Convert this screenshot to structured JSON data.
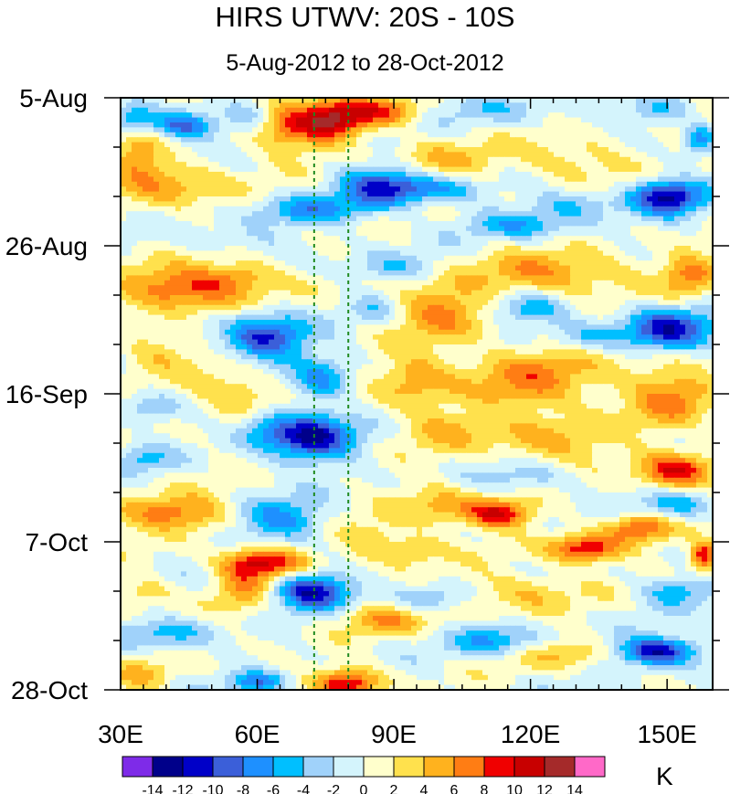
{
  "chart_data": {
    "type": "heatmap",
    "title": "HIRS UTWV: 20S - 10S",
    "subtitle": "5-Aug-2012 to 28-Oct-2012",
    "xlabel": "",
    "ylabel": "",
    "units": "K",
    "x_range": [
      30,
      160
    ],
    "y_range_days": [
      0,
      84
    ],
    "x_ticks": [
      {
        "value": 30,
        "label": "30E"
      },
      {
        "value": 60,
        "label": "60E"
      },
      {
        "value": 90,
        "label": "90E"
      },
      {
        "value": 120,
        "label": "120E"
      },
      {
        "value": 150,
        "label": "150E"
      }
    ],
    "y_ticks": [
      {
        "day": 0,
        "label": "5-Aug"
      },
      {
        "day": 21,
        "label": "26-Aug"
      },
      {
        "day": 42,
        "label": "16-Sep"
      },
      {
        "day": 63,
        "label": "7-Oct"
      },
      {
        "day": 84,
        "label": "28-Oct"
      }
    ],
    "reference_lines_lon": [
      72.5,
      80
    ],
    "colorbar": {
      "colors": [
        "#7e2be8",
        "#00008a",
        "#0000c8",
        "#3b5fd9",
        "#1e90ff",
        "#00bfff",
        "#a0d2fa",
        "#d4f4fc",
        "#ffffcc",
        "#ffe14d",
        "#ffb21e",
        "#ff7d14",
        "#f00000",
        "#c80000",
        "#a52a2a",
        "#ff69c8"
      ],
      "labels": [
        "-14",
        "-12",
        "-10",
        "-8",
        "-6",
        "-4",
        "-2",
        "0",
        "2",
        "4",
        "6",
        "8",
        "10",
        "12",
        "14"
      ]
    },
    "features": [
      {
        "type": "blob",
        "lon": 77,
        "day": 3,
        "value": 10,
        "a_lon": 7,
        "a_day": 3
      },
      {
        "type": "blob",
        "lon": 88,
        "day": 2,
        "value": 7,
        "a_lon": 8,
        "a_day": 2
      },
      {
        "type": "blob",
        "lon": 67,
        "day": 4,
        "value": 7,
        "a_lon": 8,
        "a_day": 4
      },
      {
        "type": "blob",
        "lon": 44,
        "day": 4,
        "value": -9,
        "a_lon": 7,
        "a_day": 2
      },
      {
        "type": "blob",
        "lon": 33,
        "day": 3,
        "value": -5,
        "a_lon": 5,
        "a_day": 2
      },
      {
        "type": "blob",
        "lon": 58,
        "day": 3,
        "value": -4,
        "a_lon": 5,
        "a_day": 2
      },
      {
        "type": "blob",
        "lon": 112,
        "day": 1.5,
        "value": -3,
        "a_lon": 14,
        "a_day": 2
      },
      {
        "type": "blob",
        "lon": 148,
        "day": 2,
        "value": -4,
        "a_lon": 7,
        "a_day": 2
      },
      {
        "type": "blob",
        "lon": 157,
        "day": 6,
        "value": -7,
        "a_lon": 3,
        "a_day": 2
      },
      {
        "type": "blob",
        "lon": 100,
        "day": 9,
        "value": 4,
        "a_lon": 12,
        "a_day": 3
      },
      {
        "type": "blob",
        "lon": 130,
        "day": 9,
        "value": 4,
        "a_lon": 12,
        "a_day": 3
      },
      {
        "type": "blob",
        "lon": 40,
        "day": 12,
        "value": 6,
        "a_lon": 12,
        "a_day": 3
      },
      {
        "type": "blob",
        "lon": 34,
        "day": 8,
        "value": 4,
        "a_lon": 5,
        "a_day": 4
      },
      {
        "type": "blob",
        "lon": 87,
        "day": 12.5,
        "value": -9,
        "a_lon": 9,
        "a_day": 3
      },
      {
        "type": "blob",
        "lon": 72,
        "day": 16,
        "value": -6,
        "a_lon": 12,
        "a_day": 2
      },
      {
        "type": "blob",
        "lon": 99,
        "day": 13,
        "value": -6,
        "a_lon": 10,
        "a_day": 2
      },
      {
        "type": "blob",
        "lon": 150,
        "day": 14,
        "value": -12,
        "a_lon": 8,
        "a_day": 2.5
      },
      {
        "type": "blob",
        "lon": 118,
        "day": 18,
        "value": -5,
        "a_lon": 12,
        "a_day": 2
      },
      {
        "type": "blob",
        "lon": 130,
        "day": 15,
        "value": -4,
        "a_lon": 10,
        "a_day": 2
      },
      {
        "type": "blob",
        "lon": 54,
        "day": 20,
        "value": -2,
        "a_lon": 14,
        "a_day": 2
      },
      {
        "type": "blob",
        "lon": 90,
        "day": 24,
        "value": -4,
        "a_lon": 10,
        "a_day": 2
      },
      {
        "type": "blob",
        "lon": 45,
        "day": 27,
        "value": 9,
        "a_lon": 14,
        "a_day": 3
      },
      {
        "type": "blob",
        "lon": 57,
        "day": 25,
        "value": 4,
        "a_lon": 8,
        "a_day": 2
      },
      {
        "type": "blob",
        "lon": 125,
        "day": 25,
        "value": 6,
        "a_lon": 18,
        "a_day": 3
      },
      {
        "type": "blob",
        "lon": 155,
        "day": 25,
        "value": 6,
        "a_lon": 6,
        "a_day": 3
      },
      {
        "type": "blob",
        "lon": 100,
        "day": 30,
        "value": 6,
        "a_lon": 10,
        "a_day": 4
      },
      {
        "type": "blob",
        "lon": 120,
        "day": 30,
        "value": -6,
        "a_lon": 8,
        "a_day": 2
      },
      {
        "type": "blob",
        "lon": 86,
        "day": 30,
        "value": -3,
        "a_lon": 5,
        "a_day": 2
      },
      {
        "type": "blob",
        "lon": 62,
        "day": 34,
        "value": -10,
        "a_lon": 9,
        "a_day": 3.5
      },
      {
        "type": "blob",
        "lon": 150,
        "day": 33,
        "value": -11,
        "a_lon": 10,
        "a_day": 3
      },
      {
        "type": "blob",
        "lon": 132,
        "day": 34,
        "value": -4,
        "a_lon": 8,
        "a_day": 2
      },
      {
        "type": "blob",
        "lon": 38,
        "day": 36,
        "value": 4,
        "a_lon": 8,
        "a_day": 3
      },
      {
        "type": "blob",
        "lon": 120,
        "day": 40,
        "value": 6,
        "a_lon": 16,
        "a_day": 5
      },
      {
        "type": "blob",
        "lon": 95,
        "day": 40,
        "value": 5,
        "a_lon": 8,
        "a_day": 4
      },
      {
        "type": "blob",
        "lon": 150,
        "day": 42,
        "value": 6,
        "a_lon": 10,
        "a_day": 5
      },
      {
        "type": "blob",
        "lon": 74,
        "day": 40,
        "value": -6,
        "a_lon": 6,
        "a_day": 3
      },
      {
        "type": "blob",
        "lon": 56,
        "day": 42,
        "value": 5,
        "a_lon": 10,
        "a_day": 3
      },
      {
        "type": "blob",
        "lon": 37,
        "day": 44,
        "value": -4,
        "a_lon": 6,
        "a_day": 2
      },
      {
        "type": "blob",
        "lon": 72,
        "day": 48,
        "value": -12,
        "a_lon": 9,
        "a_day": 3.5
      },
      {
        "type": "blob",
        "lon": 62,
        "day": 47,
        "value": -5,
        "a_lon": 6,
        "a_day": 2.5
      },
      {
        "type": "blob",
        "lon": 100,
        "day": 47,
        "value": 4,
        "a_lon": 10,
        "a_day": 3
      },
      {
        "type": "blob",
        "lon": 125,
        "day": 49,
        "value": 5,
        "a_lon": 12,
        "a_day": 3
      },
      {
        "type": "blob",
        "lon": 152,
        "day": 53,
        "value": 10,
        "a_lon": 8,
        "a_day": 2.5
      },
      {
        "type": "blob",
        "lon": 35,
        "day": 51,
        "value": -4,
        "a_lon": 6,
        "a_day": 2
      },
      {
        "type": "blob",
        "lon": 120,
        "day": 54,
        "value": -3,
        "a_lon": 12,
        "a_day": 2
      },
      {
        "type": "blob",
        "lon": 42,
        "day": 59,
        "value": 7,
        "a_lon": 14,
        "a_day": 2.5
      },
      {
        "type": "blob",
        "lon": 65,
        "day": 60,
        "value": -7,
        "a_lon": 10,
        "a_day": 3
      },
      {
        "type": "blob",
        "lon": 100,
        "day": 58,
        "value": 5,
        "a_lon": 9,
        "a_day": 3
      },
      {
        "type": "blob",
        "lon": 113,
        "day": 59,
        "value": 10,
        "a_lon": 7,
        "a_day": 2
      },
      {
        "type": "blob",
        "lon": 152,
        "day": 58,
        "value": -5,
        "a_lon": 8,
        "a_day": 2
      },
      {
        "type": "blob",
        "lon": 85,
        "day": 63,
        "value": 4,
        "a_lon": 8,
        "a_day": 3
      },
      {
        "type": "blob",
        "lon": 95,
        "day": 64,
        "value": 4,
        "a_lon": 6,
        "a_day": 2
      },
      {
        "type": "blob",
        "lon": 62,
        "day": 66,
        "value": 10,
        "a_lon": 9,
        "a_day": 2
      },
      {
        "type": "blob",
        "lon": 132,
        "day": 64,
        "value": 10,
        "a_lon": 8,
        "a_day": 2
      },
      {
        "type": "blob",
        "lon": 158,
        "day": 65,
        "value": 10,
        "a_lon": 3,
        "a_day": 2
      },
      {
        "type": "blob",
        "lon": 144,
        "day": 61,
        "value": 8,
        "a_lon": 7,
        "a_day": 2
      },
      {
        "type": "blob",
        "lon": 72,
        "day": 70,
        "value": -12,
        "a_lon": 8,
        "a_day": 2.5
      },
      {
        "type": "blob",
        "lon": 57,
        "day": 69,
        "value": 5,
        "a_lon": 6,
        "a_day": 4
      },
      {
        "type": "blob",
        "lon": 35,
        "day": 70,
        "value": 4,
        "a_lon": 6,
        "a_day": 2
      },
      {
        "type": "blob",
        "lon": 98,
        "day": 71,
        "value": -4,
        "a_lon": 7,
        "a_day": 2
      },
      {
        "type": "blob",
        "lon": 118,
        "day": 70,
        "value": 4,
        "a_lon": 12,
        "a_day": 3
      },
      {
        "type": "blob",
        "lon": 152,
        "day": 70,
        "value": -5,
        "a_lon": 8,
        "a_day": 2
      },
      {
        "type": "blob",
        "lon": 88,
        "day": 74,
        "value": 5,
        "a_lon": 10,
        "a_day": 2
      },
      {
        "type": "blob",
        "lon": 40,
        "day": 76,
        "value": -5,
        "a_lon": 10,
        "a_day": 2
      },
      {
        "type": "blob",
        "lon": 148,
        "day": 78.5,
        "value": -12,
        "a_lon": 9,
        "a_day": 2
      },
      {
        "type": "blob",
        "lon": 112,
        "day": 77,
        "value": -6,
        "a_lon": 9,
        "a_day": 2
      },
      {
        "type": "blob",
        "lon": 128,
        "day": 79,
        "value": 4,
        "a_lon": 10,
        "a_day": 2
      },
      {
        "type": "blob",
        "lon": 80,
        "day": 83,
        "value": 10,
        "a_lon": 7,
        "a_day": 2
      },
      {
        "type": "blob",
        "lon": 60,
        "day": 83,
        "value": -7,
        "a_lon": 6,
        "a_day": 1.5
      },
      {
        "type": "blob",
        "lon": 35,
        "day": 82,
        "value": 4,
        "a_lon": 6,
        "a_day": 2
      }
    ]
  }
}
